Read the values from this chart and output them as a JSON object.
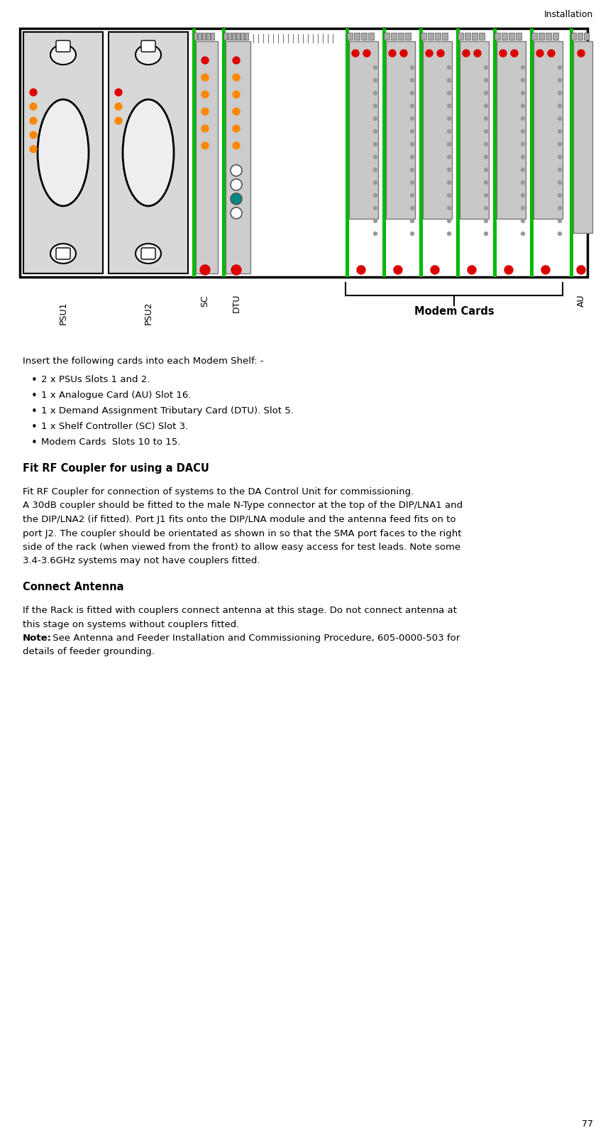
{
  "header_text": "Installation",
  "page_number": "77",
  "colors": {
    "background": "#ffffff",
    "text": "#000000",
    "green": "#00bb00",
    "gray_card": "#c0c0c0",
    "light_gray_psu": "#d0d0d0",
    "red": "#dd0000",
    "orange": "#ff8800",
    "teal": "#008888",
    "white": "#ffffff",
    "dark_gray": "#888888",
    "border": "#000000"
  },
  "intro_text": "Insert the following cards into each Modem Shelf: -",
  "bullet_points": [
    "2 x PSUs Slots 1 and 2.",
    "1 x Analogue Card (AU) Slot 16.",
    "1 x Demand Assignment Tributary Card (DTU). Slot 5.",
    "1 x Shelf Controller (SC) Slot 3.",
    "Modem Cards  Slots 10 to 15."
  ],
  "section1_heading": "Fit RF Coupler for using a DACU",
  "section1_lines": [
    "Fit RF Coupler for connection of systems to the DA Control Unit for commissioning.",
    "A 30dB coupler should be fitted to the male N-Type connector at the top of the DIP/LNA1 and",
    "the DIP/LNA2 (if fitted). Port J1 fits onto the DIP/LNA module and the antenna feed fits on to",
    "port J2. The coupler should be orientated as shown in so that the SMA port faces to the right",
    "side of the rack (when viewed from the front) to allow easy access for test leads. Note some",
    "3.4-3.6GHz systems may not have couplers fitted."
  ],
  "section2_heading": "Connect Antenna",
  "section2_lines": [
    "If the Rack is fitted with couplers connect antenna at this stage. Do not connect antenna at",
    "this stage on systems without couplers fitted."
  ],
  "note_bold": "Note:",
  "note_normal_line1": " See Antenna and Feeder Installation and Commissioning Procedure, 605-0000-503 for",
  "note_normal_line2": "details of feeder grounding."
}
